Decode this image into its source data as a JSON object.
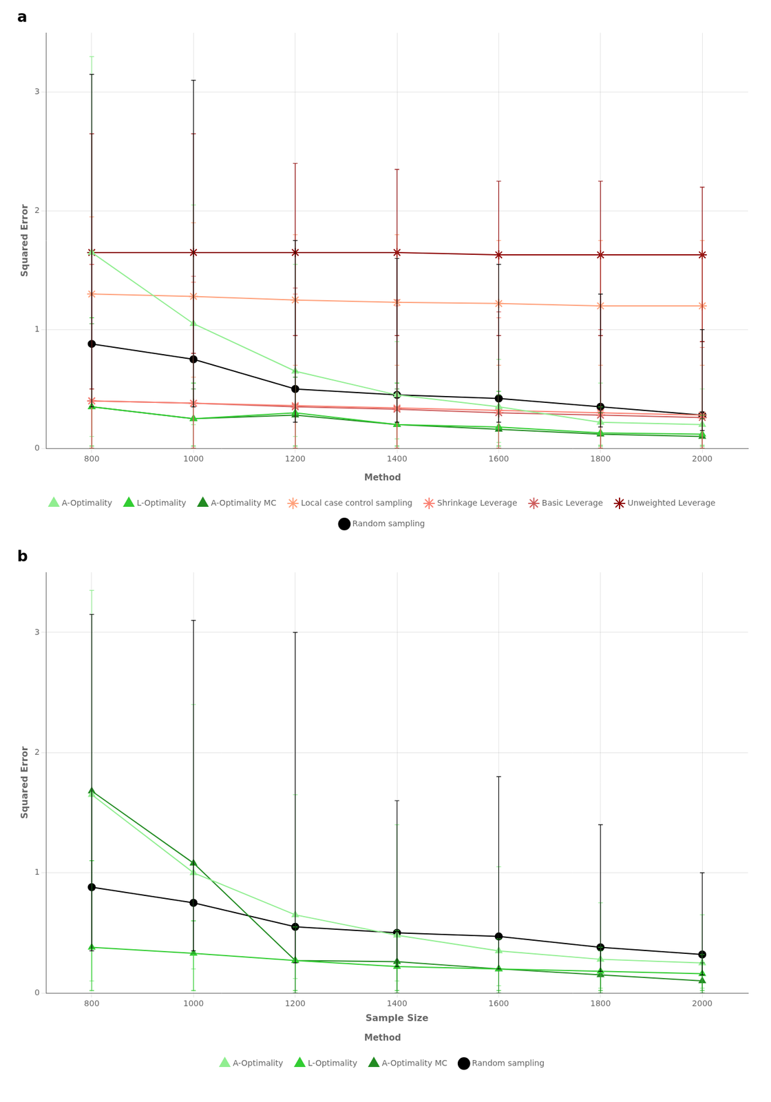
{
  "chart_data": [
    {
      "type": "line",
      "title": "a",
      "x_label": null,
      "y_label": "Squared Error",
      "legend_title": "Method",
      "x": [
        800,
        1000,
        1200,
        1400,
        1600,
        1800,
        2000
      ],
      "xlim": [
        710,
        2090
      ],
      "xticks": [
        800,
        1000,
        1200,
        1400,
        1600,
        1800,
        2000
      ],
      "ylim": [
        0,
        3.5
      ],
      "yticks": [
        0,
        1,
        2,
        3
      ],
      "grid": true,
      "legend": "bottom",
      "series": [
        {
          "name": "A-Optimality",
          "color": "#90EE90",
          "marker": "triangle",
          "line_style": "solid",
          "values": [
            1.65,
            1.05,
            0.65,
            0.45,
            0.35,
            0.22,
            0.2
          ],
          "lo": [
            0.1,
            0.2,
            0.1,
            0.08,
            0.05,
            0.03,
            0.03
          ],
          "hi": [
            3.3,
            2.05,
            1.55,
            0.9,
            0.75,
            0.55,
            0.5
          ]
        },
        {
          "name": "L-Optimality",
          "color": "#32CD32",
          "marker": "triangle",
          "line_style": "solid",
          "values": [
            0.35,
            0.25,
            0.3,
            0.2,
            0.18,
            0.13,
            0.12
          ],
          "lo": [
            0.02,
            0.02,
            0.02,
            0.02,
            0.02,
            0.02,
            0.02
          ],
          "hi": [
            1.1,
            0.55,
            0.65,
            0.55,
            0.48,
            0.35,
            0.28
          ]
        },
        {
          "name": "A-Optimality MC",
          "color": "#228B22",
          "marker": "triangle",
          "line_style": "solid",
          "values": [
            0.35,
            0.25,
            0.28,
            0.2,
            0.16,
            0.12,
            0.1
          ],
          "lo": [
            0.0,
            0.0,
            0.0,
            0.0,
            0.0,
            0.0,
            0.0
          ],
          "hi": [
            1.05,
            0.5,
            0.6,
            0.5,
            0.45,
            0.3,
            0.25
          ]
        },
        {
          "name": "Local case control sampling",
          "color": "#FFA07A",
          "marker": "star",
          "line_style": "solid",
          "values": [
            1.3,
            1.28,
            1.25,
            1.23,
            1.22,
            1.2,
            1.2
          ],
          "lo": [
            0.5,
            0.6,
            0.7,
            0.7,
            0.7,
            0.7,
            0.7
          ],
          "hi": [
            1.95,
            1.9,
            1.8,
            1.8,
            1.75,
            1.75,
            1.75
          ]
        },
        {
          "name": "Shrinkage Leverage",
          "color": "#FA8072",
          "marker": "star",
          "line_style": "solid",
          "values": [
            0.4,
            0.38,
            0.36,
            0.34,
            0.32,
            0.3,
            0.28
          ],
          "lo": [
            0.0,
            0.0,
            0.0,
            0.0,
            0.0,
            0.0,
            0.0
          ],
          "hi": [
            1.55,
            1.4,
            1.3,
            1.2,
            1.1,
            0.95,
            0.85
          ]
        },
        {
          "name": "Basic Leverage",
          "color": "#CD5C5C",
          "marker": "star",
          "line_style": "solid",
          "values": [
            0.4,
            0.38,
            0.35,
            0.33,
            0.3,
            0.28,
            0.26
          ],
          "lo": [
            0.0,
            0.0,
            0.0,
            0.0,
            0.0,
            0.0,
            0.0
          ],
          "hi": [
            1.55,
            1.45,
            1.35,
            1.25,
            1.15,
            1.0,
            0.9
          ]
        },
        {
          "name": "Unweighted Leverage",
          "color": "#8B0000",
          "marker": "star",
          "line_style": "solid",
          "values": [
            1.65,
            1.65,
            1.65,
            1.65,
            1.63,
            1.63,
            1.63
          ],
          "lo": [
            0.5,
            0.8,
            0.95,
            0.95,
            0.95,
            0.95,
            0.9
          ],
          "hi": [
            2.65,
            2.65,
            2.4,
            2.35,
            2.25,
            2.25,
            2.2
          ]
        },
        {
          "name": "Random sampling",
          "color": "#000000",
          "marker": "circle",
          "line_style": "solid",
          "values": [
            0.88,
            0.75,
            0.5,
            0.45,
            0.42,
            0.35,
            0.28
          ],
          "lo": [
            0.35,
            0.35,
            0.22,
            0.22,
            0.22,
            0.18,
            0.15
          ],
          "hi": [
            3.15,
            3.1,
            1.75,
            1.6,
            1.55,
            1.3,
            1.0
          ]
        }
      ]
    },
    {
      "type": "line",
      "title": "b",
      "x_label": "Sample Size",
      "y_label": "Squared Error",
      "legend_title": "Method",
      "x": [
        800,
        1000,
        1200,
        1400,
        1600,
        1800,
        2000
      ],
      "xlim": [
        710,
        2090
      ],
      "xticks": [
        800,
        1000,
        1200,
        1400,
        1600,
        1800,
        2000
      ],
      "ylim": [
        0,
        3.5
      ],
      "yticks": [
        0,
        1,
        2,
        3
      ],
      "grid": true,
      "legend": "bottom",
      "series": [
        {
          "name": "A-Optimality",
          "color": "#90EE90",
          "marker": "triangle",
          "line_style": "solid",
          "values": [
            1.65,
            1.0,
            0.65,
            0.48,
            0.35,
            0.28,
            0.25
          ],
          "lo": [
            0.1,
            0.2,
            0.12,
            0.1,
            0.06,
            0.04,
            0.04
          ],
          "hi": [
            3.35,
            2.4,
            1.65,
            1.4,
            1.05,
            0.75,
            0.65
          ]
        },
        {
          "name": "L-Optimality",
          "color": "#32CD32",
          "marker": "triangle",
          "line_style": "solid",
          "values": [
            0.38,
            0.33,
            0.27,
            0.22,
            0.2,
            0.18,
            0.16
          ],
          "lo": [
            0.02,
            0.02,
            0.02,
            0.02,
            0.02,
            0.02,
            0.02
          ],
          "hi": [
            1.1,
            0.6,
            0.55,
            0.52,
            0.45,
            0.38,
            0.32
          ]
        },
        {
          "name": "A-Optimality MC",
          "color": "#228B22",
          "marker": "triangle",
          "line_style": "solid",
          "values": [
            1.68,
            1.08,
            0.27,
            0.26,
            0.2,
            0.15,
            0.1
          ],
          "lo": [
            0.38,
            0.33,
            0.0,
            0.0,
            0.0,
            0.0,
            0.0
          ],
          "hi": [
            1.68,
            1.08,
            0.55,
            0.52,
            0.45,
            0.35,
            0.25
          ]
        },
        {
          "name": "Random sampling",
          "color": "#000000",
          "marker": "circle",
          "line_style": "solid",
          "values": [
            0.88,
            0.75,
            0.55,
            0.5,
            0.47,
            0.38,
            0.32
          ],
          "lo": [
            0.35,
            0.35,
            0.25,
            0.22,
            0.2,
            0.18,
            0.15
          ],
          "hi": [
            3.15,
            3.1,
            3.0,
            1.6,
            1.8,
            1.4,
            1.0
          ]
        }
      ]
    }
  ]
}
